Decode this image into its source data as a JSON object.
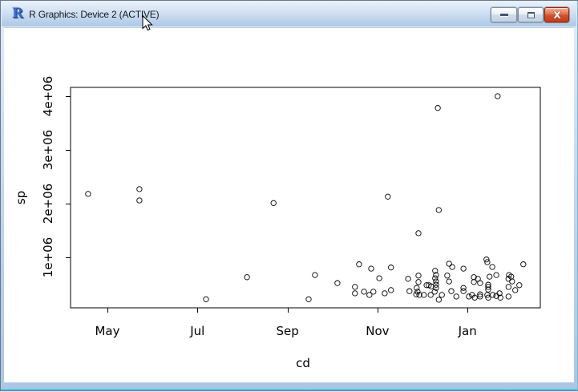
{
  "window": {
    "title": "R Graphics: Device 2 (ACTIVE)",
    "app_icon": "r-logo-icon",
    "controls": {
      "minimize_icon": "minimize-icon",
      "restore_icon": "restore-icon",
      "close_icon": "close-icon",
      "close_glyph": "✕"
    }
  },
  "chart_data": {
    "type": "scatter",
    "title": "",
    "xlabel": "cd",
    "ylabel": "sp",
    "marker": "open-circle",
    "grid": false,
    "x_ticks": [
      "May",
      "Jul",
      "Sep",
      "Nov",
      "Jan"
    ],
    "x_tick_positions": [
      0,
      2,
      4,
      6,
      8
    ],
    "x_axis_units": "months after May 1",
    "xlim_months": [
      -0.82,
      9.62
    ],
    "y_ticks": [
      "1e+06",
      "2e+06",
      "3e+06",
      "4e+06"
    ],
    "y_tick_values": [
      1000000,
      2000000,
      3000000,
      4000000
    ],
    "ylim": [
      75000,
      4160000
    ],
    "points": [
      [
        -0.43,
        2180000
      ],
      [
        0.71,
        2270000
      ],
      [
        0.71,
        2060000
      ],
      [
        2.19,
        220000
      ],
      [
        3.1,
        630000
      ],
      [
        3.69,
        2010000
      ],
      [
        4.47,
        220000
      ],
      [
        4.61,
        670000
      ],
      [
        5.11,
        520000
      ],
      [
        5.5,
        450000
      ],
      [
        5.5,
        330000
      ],
      [
        5.59,
        870000
      ],
      [
        5.7,
        360000
      ],
      [
        5.82,
        300000
      ],
      [
        5.86,
        790000
      ],
      [
        5.91,
        360000
      ],
      [
        6.04,
        610000
      ],
      [
        6.16,
        330000
      ],
      [
        6.23,
        2130000
      ],
      [
        6.3,
        810000
      ],
      [
        6.3,
        390000
      ],
      [
        6.68,
        600000
      ],
      [
        6.71,
        370000
      ],
      [
        6.86,
        310000
      ],
      [
        6.87,
        430000
      ],
      [
        6.89,
        360000
      ],
      [
        6.91,
        1450000
      ],
      [
        6.91,
        660000
      ],
      [
        6.91,
        540000
      ],
      [
        6.93,
        300000
      ],
      [
        7.03,
        300000
      ],
      [
        7.09,
        480000
      ],
      [
        7.14,
        480000
      ],
      [
        7.18,
        300000
      ],
      [
        7.19,
        460000
      ],
      [
        7.27,
        360000
      ],
      [
        7.28,
        750000
      ],
      [
        7.28,
        610000
      ],
      [
        7.3,
        670000
      ],
      [
        7.3,
        550000
      ],
      [
        7.3,
        490000
      ],
      [
        7.3,
        430000
      ],
      [
        7.34,
        3780000
      ],
      [
        7.36,
        1880000
      ],
      [
        7.36,
        210000
      ],
      [
        7.43,
        300000
      ],
      [
        7.55,
        660000
      ],
      [
        7.59,
        880000
      ],
      [
        7.59,
        550000
      ],
      [
        7.64,
        370000
      ],
      [
        7.66,
        820000
      ],
      [
        7.75,
        270000
      ],
      [
        7.91,
        790000
      ],
      [
        7.91,
        430000
      ],
      [
        7.91,
        370000
      ],
      [
        8.03,
        270000
      ],
      [
        8.1,
        300000
      ],
      [
        8.14,
        630000
      ],
      [
        8.14,
        540000
      ],
      [
        8.16,
        250000
      ],
      [
        8.23,
        600000
      ],
      [
        8.28,
        520000
      ],
      [
        8.28,
        310000
      ],
      [
        8.28,
        270000
      ],
      [
        8.42,
        960000
      ],
      [
        8.44,
        910000
      ],
      [
        8.44,
        300000
      ],
      [
        8.46,
        490000
      ],
      [
        8.46,
        450000
      ],
      [
        8.46,
        400000
      ],
      [
        8.46,
        250000
      ],
      [
        8.49,
        640000
      ],
      [
        8.55,
        820000
      ],
      [
        8.56,
        300000
      ],
      [
        8.64,
        670000
      ],
      [
        8.64,
        280000
      ],
      [
        8.67,
        4000000
      ],
      [
        8.71,
        330000
      ],
      [
        8.73,
        250000
      ],
      [
        8.91,
        600000
      ],
      [
        8.91,
        450000
      ],
      [
        8.91,
        270000
      ],
      [
        8.92,
        670000
      ],
      [
        8.97,
        640000
      ],
      [
        8.99,
        550000
      ],
      [
        9.06,
        390000
      ],
      [
        9.15,
        480000
      ],
      [
        9.24,
        870000
      ]
    ]
  }
}
